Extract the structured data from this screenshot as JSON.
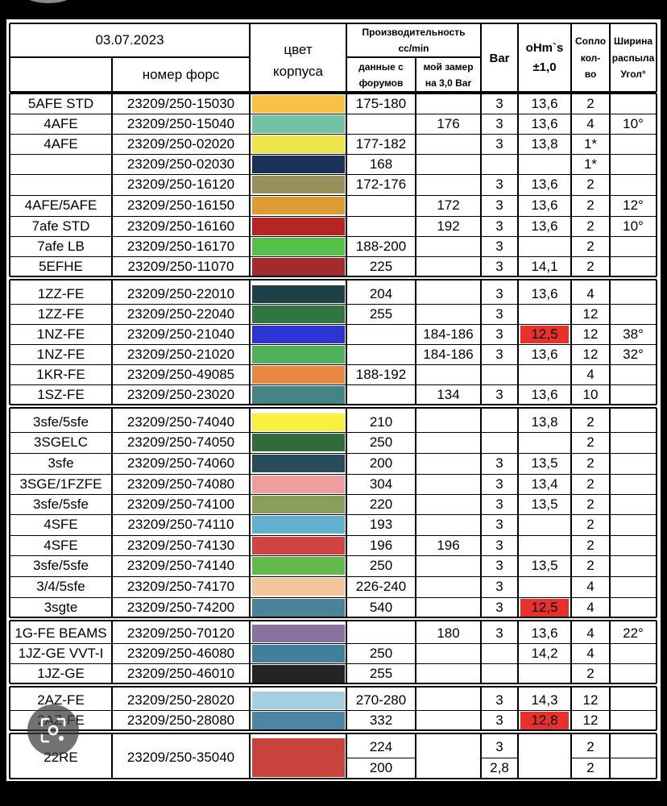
{
  "header": {
    "date": "03.07.2023",
    "part_number": "номер форс",
    "body_color_line1": "цвет",
    "body_color_line2": "корпуса",
    "productivity": "Производительность cc/min",
    "forum_data": "данные с форумов",
    "my_measure": "мой замер на 3,0 Bar",
    "bar": "Bar",
    "ohms": "oHm`s ±1,0",
    "nozzle_count": "Сопло кол-во",
    "spray_angle": "Ширина распыла Угол°"
  },
  "rows": [
    {
      "model": "5AFE STD",
      "part": "23209/250-15030",
      "color": "#f7c245",
      "forum": "175-180",
      "mine": "",
      "bar": "3",
      "ohms": "13,6",
      "ohms_red": false,
      "nozzles": "2",
      "angle": ""
    },
    {
      "model": "4AFE",
      "part": "23209/250-15040",
      "color": "#72c2a5",
      "forum": "",
      "mine": "176",
      "bar": "3",
      "ohms": "13,6",
      "ohms_red": false,
      "nozzles": "4",
      "angle": "10°"
    },
    {
      "model": "4AFE",
      "part": "23209/250-02020",
      "color": "#ece34d",
      "forum": "177-182",
      "mine": "",
      "bar": "3",
      "ohms": "13,8",
      "ohms_red": false,
      "nozzles": "1*",
      "angle": ""
    },
    {
      "model": "",
      "part": "23209/250-02030",
      "color": "#1c3157",
      "forum": "168",
      "mine": "",
      "bar": "",
      "ohms": "",
      "ohms_red": false,
      "nozzles": "1*",
      "angle": ""
    },
    {
      "model": "",
      "part": "23209/250-16120",
      "color": "#98915c",
      "forum": "172-176",
      "mine": "",
      "bar": "3",
      "ohms": "13,6",
      "ohms_red": false,
      "nozzles": "2",
      "angle": ""
    },
    {
      "model": "4AFE/5AFE",
      "part": "23209/250-16150",
      "color": "#de9a33",
      "forum": "",
      "mine": "172",
      "bar": "3",
      "ohms": "13,6",
      "ohms_red": false,
      "nozzles": "2",
      "angle": "12°"
    },
    {
      "model": "7afe STD",
      "part": "23209/250-16160",
      "color": "#b52523",
      "forum": "",
      "mine": "192",
      "bar": "3",
      "ohms": "13,6",
      "ohms_red": false,
      "nozzles": "2",
      "angle": "10°"
    },
    {
      "model": "7afe LB",
      "part": "23209/250-16170",
      "color": "#55c149",
      "forum": "188-200",
      "mine": "",
      "bar": "3",
      "ohms": "",
      "ohms_red": false,
      "nozzles": "2",
      "angle": ""
    },
    {
      "model": "5EFHE",
      "part": "23209/250-11070",
      "color": "#a32b2c",
      "forum": "225",
      "mine": "",
      "bar": "3",
      "ohms": "14,1",
      "ohms_red": false,
      "nozzles": "2",
      "angle": ""
    },
    {
      "model": "1ZZ-FE",
      "part": "23209/250-22010",
      "color": "#1d4146",
      "forum": "204",
      "mine": "",
      "bar": "3",
      "ohms": "13,6",
      "ohms_red": false,
      "nozzles": "4",
      "angle": ""
    },
    {
      "model": "1ZZ-FE",
      "part": "23209/250-22040",
      "color": "#2f7642",
      "forum": "255",
      "mine": "",
      "bar": "3",
      "ohms": "",
      "ohms_red": false,
      "nozzles": "12",
      "angle": ""
    },
    {
      "model": "1NZ-FE",
      "part": "23209/250-21040",
      "color": "#2d34d2",
      "forum": "",
      "mine": "184-186",
      "bar": "3",
      "ohms": "12,5",
      "ohms_red": true,
      "nozzles": "12",
      "angle": "38°"
    },
    {
      "model": "1NZ-FE",
      "part": "23209/250-21020",
      "color": "#4fb25a",
      "forum": "",
      "mine": "184-186",
      "bar": "3",
      "ohms": "13,6",
      "ohms_red": false,
      "nozzles": "12",
      "angle": "32°"
    },
    {
      "model": "1KR-FE",
      "part": "23209/250-49085",
      "color": "#e98842",
      "forum": "188-192",
      "mine": "",
      "bar": "",
      "ohms": "",
      "ohms_red": false,
      "nozzles": "4",
      "angle": ""
    },
    {
      "model": "1SZ-FE",
      "part": "23209/250-23020",
      "color": "#438485",
      "forum": "",
      "mine": "134",
      "bar": "3",
      "ohms": "13,6",
      "ohms_red": false,
      "nozzles": "10",
      "angle": ""
    },
    {
      "model": "3sfe/5sfe",
      "part": "23209/250-74040",
      "color": "#f9f13e",
      "forum": "210",
      "mine": "",
      "bar": "",
      "ohms": "13,8",
      "ohms_red": false,
      "nozzles": "2",
      "angle": ""
    },
    {
      "model": "3SGELC",
      "part": "23209/250-74050",
      "color": "#2f6c3a",
      "forum": "250",
      "mine": "",
      "bar": "",
      "ohms": "",
      "ohms_red": false,
      "nozzles": "2",
      "angle": ""
    },
    {
      "model": "3sfe",
      "part": "23209/250-74060",
      "color": "#294c5a",
      "forum": "200",
      "mine": "",
      "bar": "3",
      "ohms": "13,5",
      "ohms_red": false,
      "nozzles": "2",
      "angle": ""
    },
    {
      "model": "3SGE/1FZFE",
      "part": "23209/250-74080",
      "color": "#ee9e9c",
      "forum": "304",
      "mine": "",
      "bar": "3",
      "ohms": "13,4",
      "ohms_red": false,
      "nozzles": "2",
      "angle": ""
    },
    {
      "model": "3sfe/5sfe",
      "part": "23209/250-74100",
      "color": "#899f59",
      "forum": "220",
      "mine": "",
      "bar": "3",
      "ohms": "13,5",
      "ohms_red": false,
      "nozzles": "2",
      "angle": ""
    },
    {
      "model": "4SFE",
      "part": "23209/250-74110",
      "color": "#64aece",
      "forum": "193",
      "mine": "",
      "bar": "3",
      "ohms": "",
      "ohms_red": false,
      "nozzles": "2",
      "angle": ""
    },
    {
      "model": "4SFE",
      "part": "23209/250-74130",
      "color": "#cf4440",
      "forum": "196",
      "mine": "196",
      "bar": "3",
      "ohms": "",
      "ohms_red": false,
      "nozzles": "2",
      "angle": ""
    },
    {
      "model": "3sfe/5sfe",
      "part": "23209/250-74140",
      "color": "#62bb4b",
      "forum": "250",
      "mine": "",
      "bar": "3",
      "ohms": "13,5",
      "ohms_red": false,
      "nozzles": "2",
      "angle": ""
    },
    {
      "model": "3/4/5sfe",
      "part": "23209/250-74170",
      "color": "#f3c79a",
      "forum": "226-240",
      "mine": "",
      "bar": "3",
      "ohms": "",
      "ohms_red": false,
      "nozzles": "4",
      "angle": ""
    },
    {
      "model": "3sgte",
      "part": "23209/250-74200",
      "color": "#4a8399",
      "forum": "540",
      "mine": "",
      "bar": "3",
      "ohms": "12,5",
      "ohms_red": true,
      "nozzles": "4",
      "angle": ""
    },
    {
      "model": "1G-FE BEAMS",
      "part": "23209/250-70120",
      "color": "#87719d",
      "forum": "",
      "mine": "180",
      "bar": "3",
      "ohms": "13,6",
      "ohms_red": false,
      "nozzles": "4",
      "angle": "22°"
    },
    {
      "model": "1JZ-GE VVT-I",
      "part": "23209/250-46080",
      "color": "#417f9b",
      "forum": "250",
      "mine": "",
      "bar": "",
      "ohms": "14,2",
      "ohms_red": false,
      "nozzles": "4",
      "angle": ""
    },
    {
      "model": "1JZ-GE",
      "part": "23209/250-46010",
      "color": "#242424",
      "forum": "255",
      "mine": "",
      "bar": "",
      "ohms": "",
      "ohms_red": false,
      "nozzles": "2",
      "angle": ""
    },
    {
      "model": "2AZ-FE",
      "part": "23209/250-28020",
      "color": "#a5cfe0",
      "forum": "270-280",
      "mine": "",
      "bar": "3",
      "ohms": "14,3",
      "ohms_red": false,
      "nozzles": "12",
      "angle": ""
    },
    {
      "model": "2AZ-FE",
      "part": "23209/250-28080",
      "color": "#4b86a6",
      "forum": "332",
      "mine": "",
      "bar": "3",
      "ohms": "12,8",
      "ohms_red": true,
      "nozzles": "12",
      "angle": ""
    }
  ],
  "last_row": {
    "model": "22RE",
    "part": "23209/250-35040",
    "color": "#c9433d",
    "forum_1": "224",
    "forum_2": "200",
    "bar_1": "3",
    "bar_2": "2,8",
    "nozzles_1": "2",
    "nozzles_2": "2"
  },
  "colors": {
    "ohms_alert": "#e8312a"
  },
  "overlay": {
    "icon": "lens-icon"
  }
}
